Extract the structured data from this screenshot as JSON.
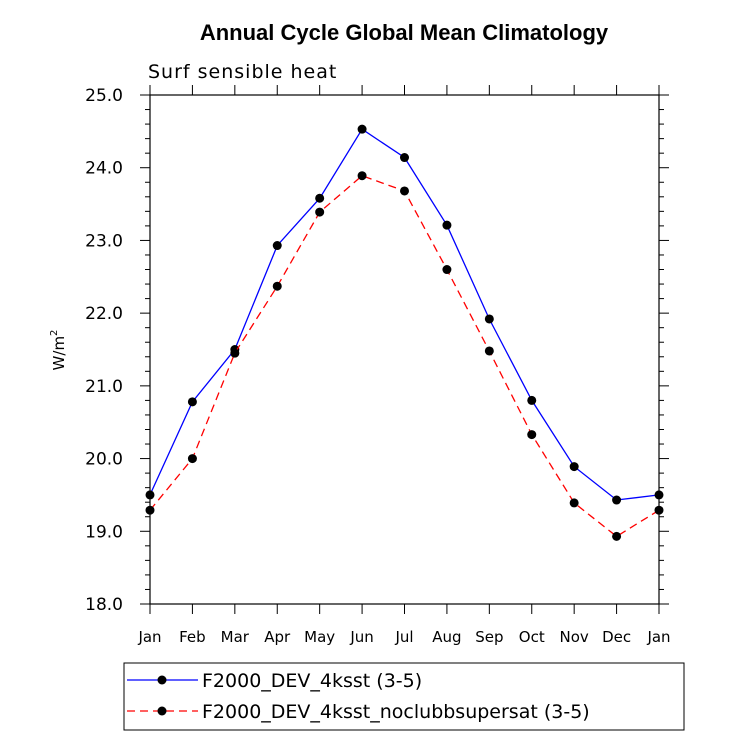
{
  "chart_data": {
    "type": "line",
    "title": "Annual Cycle Global Mean Climatology",
    "subtitle": "Surf sensible heat",
    "ylabel": "W/m",
    "ylabel_superscript": "2",
    "xlabel": "",
    "categories": [
      "Jan",
      "Feb",
      "Mar",
      "Apr",
      "May",
      "Jun",
      "Jul",
      "Aug",
      "Sep",
      "Oct",
      "Nov",
      "Dec",
      "Jan"
    ],
    "ylim": [
      18.0,
      25.0
    ],
    "yticks": [
      "18.0",
      "19.0",
      "20.0",
      "21.0",
      "22.0",
      "23.0",
      "24.0",
      "25.0"
    ],
    "grid": false,
    "legend_position": "bottom",
    "series": [
      {
        "name": "F2000_DEV_4ksst (3-5)",
        "color": "#0000ff",
        "dash": "solid",
        "marker": "filled-circle",
        "values": [
          19.5,
          20.78,
          21.5,
          22.93,
          23.58,
          24.53,
          24.14,
          23.21,
          21.92,
          20.8,
          19.89,
          19.43,
          19.5
        ]
      },
      {
        "name": "F2000_DEV_4ksst_noclubbsupersat (3-5)",
        "color": "#ff0000",
        "dash": "dashed",
        "marker": "filled-circle",
        "values": [
          19.29,
          20.0,
          21.45,
          22.37,
          23.39,
          23.89,
          23.68,
          22.6,
          21.48,
          20.33,
          19.39,
          18.93,
          19.29
        ]
      }
    ]
  }
}
